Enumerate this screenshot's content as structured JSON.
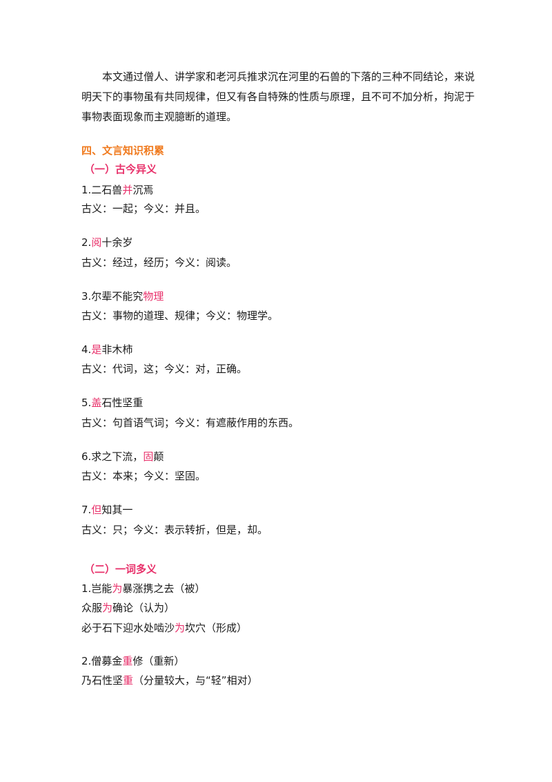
{
  "intro": "本文通过僧人、讲学家和老河兵推求沉在河里的石兽的下落的三种不同结论，来说明天下的事物虽有共同规律，但又有各自特殊的性质与原理，且不可不加分析，拘泥于事物表面现象而主观臆断的道理。",
  "section4_title": "四、文言知识积累",
  "sub1_title": "（一）古今异义",
  "sub1_items": [
    {
      "pre": "1.二石兽",
      "hl": "并",
      "post": "沉焉",
      "meaning": "古义：一起；今义：并且。"
    },
    {
      "pre": "2.",
      "hl": "阅",
      "post": "十余岁",
      "meaning": "古义：经过，经历；今义：阅读。"
    },
    {
      "pre": "3.尔辈不能究",
      "hl": "物理",
      "post": "",
      "meaning": "古义：事物的道理、规律；今义：物理学。"
    },
    {
      "pre": "4.",
      "hl": "是",
      "post": "非木柿",
      "meaning": "古义：代词，这；今义：对，正确。"
    },
    {
      "pre": "5.",
      "hl": "盖",
      "post": "石性坚重",
      "meaning": "古义：句首语气词；今义：有遮蔽作用的东西。"
    },
    {
      "pre": "6.求之下流，",
      "hl": "固",
      "post": "颠",
      "meaning": "古义：本来；今义：坚固。"
    },
    {
      "pre": "7.",
      "hl": "但",
      "post": "知其一",
      "meaning": "古义：只；今义：表示转折，但是，却。"
    }
  ],
  "sub2_title": "（二）一词多义",
  "sub2_lines": [
    {
      "pre": "1.岂能",
      "hl": "为",
      "post": "暴涨携之去（被）"
    },
    {
      "pre": "众服",
      "hl": "为",
      "post": "确论（认为）"
    },
    {
      "pre": "必于石下迎水处啮沙",
      "hl": "为",
      "post": "坎穴（形成）"
    },
    {
      "pre": "2.僧募金",
      "hl": "重",
      "post": "修（重新）"
    },
    {
      "pre": "乃石性坚",
      "hl": "重",
      "post": "（分量较大，与“轻”相对）"
    }
  ]
}
